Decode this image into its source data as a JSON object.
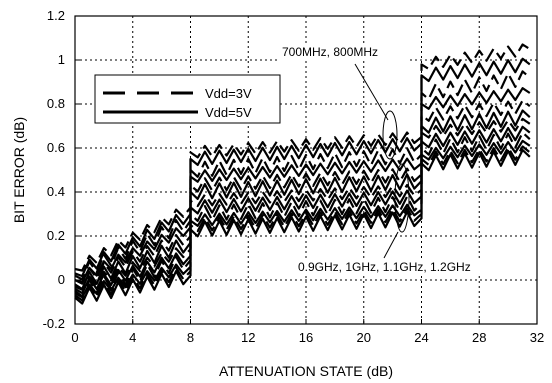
{
  "chart_data": {
    "type": "line",
    "xlabel": "ATTENUATION STATE (dB)",
    "ylabel": "BIT ERROR (dB)",
    "xlim": [
      0,
      32
    ],
    "ylim": [
      -0.2,
      1.2
    ],
    "x_ticks": [
      0,
      4,
      8,
      12,
      16,
      20,
      24,
      28,
      32
    ],
    "x_tick_labels": [
      "0",
      "4",
      "8",
      "12",
      "16",
      "20",
      "24",
      "28",
      "32"
    ],
    "y_ticks": [
      -0.2,
      0,
      0.2,
      0.4,
      0.6,
      0.8,
      1,
      1.2
    ],
    "y_tick_labels": [
      "-0.2",
      "0",
      "0.2",
      "0.4",
      "0.6",
      "0.8",
      "1",
      "1.2"
    ],
    "grid": true,
    "legend_position": "upper-left",
    "legend": [
      {
        "label": "Vdd=3V",
        "style": "dashed"
      },
      {
        "label": "Vdd=5V",
        "style": "solid"
      }
    ],
    "annotations": [
      {
        "text": "700MHz, 800MHz"
      },
      {
        "text": "0.9GHz, 1GHz, 1.1GHz, 1.2GHz"
      }
    ],
    "series_groups": [
      {
        "group": "700MHz, 800MHz",
        "frequencies": [
          "700MHz",
          "800MHz"
        ]
      },
      {
        "group": "0.9GHz, 1GHz, 1.1GHz, 1.2GHz",
        "frequencies": [
          "0.9GHz",
          "1GHz",
          "1.1GHz",
          "1.2GHz"
        ]
      }
    ],
    "series": [
      {
        "vdd": "Vdd=3V",
        "style": "dashed",
        "x": [
          0,
          8,
          8,
          24,
          24,
          31.5
        ],
        "y": [
          0.05,
          0.33,
          0.58,
          0.65,
          0.98,
          1.05
        ]
      },
      {
        "vdd": "Vdd=5V",
        "style": "solid",
        "x": [
          0,
          8,
          8,
          24,
          24,
          31.5
        ],
        "y": [
          0.03,
          0.3,
          0.55,
          0.62,
          0.93,
          0.98
        ]
      },
      {
        "vdd": "Vdd=3V",
        "style": "dashed",
        "x": [
          0,
          8,
          8,
          24,
          24,
          31.5
        ],
        "y": [
          0.02,
          0.27,
          0.5,
          0.57,
          0.85,
          0.92
        ]
      },
      {
        "vdd": "Vdd=5V",
        "style": "solid",
        "x": [
          0,
          8,
          8,
          24,
          24,
          31.5
        ],
        "y": [
          0.0,
          0.24,
          0.47,
          0.53,
          0.8,
          0.85
        ]
      },
      {
        "vdd": "Vdd=3V",
        "style": "dashed",
        "x": [
          0,
          8,
          8,
          24,
          24,
          31.5
        ],
        "y": [
          0.0,
          0.2,
          0.43,
          0.48,
          0.75,
          0.79
        ]
      },
      {
        "vdd": "Vdd=5V",
        "style": "solid",
        "x": [
          0,
          8,
          8,
          24,
          24,
          31.5
        ],
        "y": [
          -0.02,
          0.17,
          0.4,
          0.45,
          0.7,
          0.74
        ]
      },
      {
        "vdd": "Vdd=3V",
        "style": "dashed",
        "x": [
          0,
          8,
          8,
          24,
          24,
          31.5
        ],
        "y": [
          -0.03,
          0.14,
          0.36,
          0.41,
          0.67,
          0.71
        ]
      },
      {
        "vdd": "Vdd=5V",
        "style": "solid",
        "x": [
          0,
          8,
          8,
          24,
          24,
          31.5
        ],
        "y": [
          -0.04,
          0.11,
          0.33,
          0.38,
          0.63,
          0.67
        ]
      },
      {
        "vdd": "Vdd=3V",
        "style": "dashed",
        "x": [
          0,
          8,
          8,
          24,
          24,
          31.5
        ],
        "y": [
          -0.05,
          0.09,
          0.3,
          0.35,
          0.6,
          0.64
        ]
      },
      {
        "vdd": "Vdd=5V",
        "style": "solid",
        "x": [
          0,
          8,
          8,
          24,
          24,
          31.5
        ],
        "y": [
          -0.06,
          0.06,
          0.27,
          0.32,
          0.57,
          0.61
        ]
      },
      {
        "vdd": "Vdd=3V",
        "style": "dashed",
        "x": [
          0,
          8,
          8,
          24,
          24,
          31.5
        ],
        "y": [
          -0.07,
          0.04,
          0.25,
          0.3,
          0.55,
          0.58
        ]
      },
      {
        "vdd": "Vdd=5V",
        "style": "solid",
        "x": [
          0,
          8,
          8,
          24,
          24,
          31.5
        ],
        "y": [
          -0.08,
          0.02,
          0.23,
          0.28,
          0.53,
          0.56
        ]
      }
    ]
  }
}
